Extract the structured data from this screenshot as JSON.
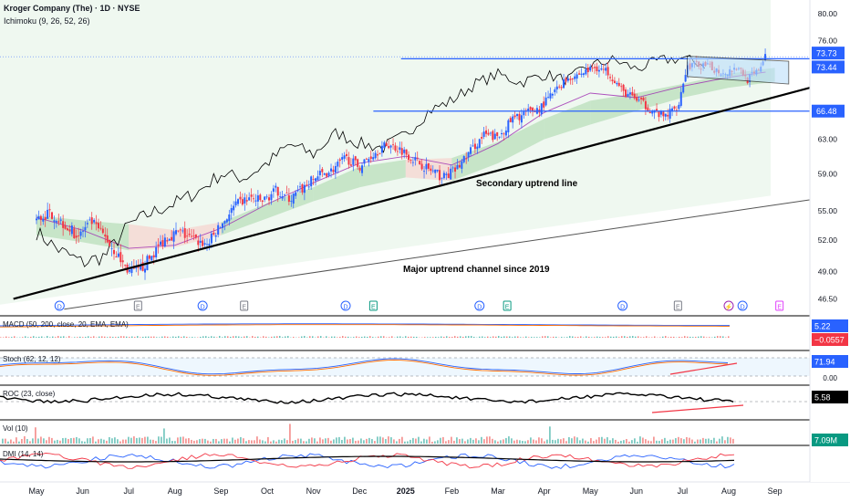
{
  "header": {
    "title": "Kroger Company (The) · 1D · NYSE",
    "indicator": "Ichimoku (9, 26, 52, 26)"
  },
  "price_axis": {
    "ticks": [
      "80.00",
      "76.00",
      "73.44",
      "66.48",
      "63.00",
      "59.00",
      "55.00",
      "52.00",
      "49.00",
      "46.50"
    ],
    "badges": [
      {
        "label": "73.73",
        "value": 73.73,
        "color": "#2962ff"
      },
      {
        "label": "73.44",
        "value": 73.44,
        "color": "#2962ff"
      },
      {
        "label": "66.48",
        "value": 66.48,
        "color": "#2962ff"
      }
    ]
  },
  "annotations": {
    "secondary_trend_label": "Secondary uptrend line",
    "major_channel_label": "Major uptrend channel since 2019"
  },
  "events": [
    {
      "label": "D",
      "x_month": 0.5,
      "color": "#2962ff"
    },
    {
      "label": "E",
      "x_month": 2.2,
      "color": "#787b86"
    },
    {
      "label": "D",
      "x_month": 3.6,
      "color": "#2962ff"
    },
    {
      "label": "E",
      "x_month": 4.5,
      "color": "#787b86"
    },
    {
      "label": "D",
      "x_month": 6.7,
      "color": "#2962ff"
    },
    {
      "label": "E",
      "x_month": 7.3,
      "color": "#089981"
    },
    {
      "label": "D",
      "x_month": 9.6,
      "color": "#2962ff"
    },
    {
      "label": "E",
      "x_month": 10.2,
      "color": "#089981"
    },
    {
      "label": "D",
      "x_month": 12.7,
      "color": "#2962ff"
    },
    {
      "label": "E",
      "x_month": 13.9,
      "color": "#787b86"
    },
    {
      "label": "⚡",
      "x_month": 15.0,
      "color": "#9c27b0"
    },
    {
      "label": "D",
      "x_month": 15.3,
      "color": "#2962ff"
    },
    {
      "label": "E",
      "x_month": 16.1,
      "color": "#e040fb"
    }
  ],
  "panes": {
    "macd": {
      "label": "MACD (50, 200, close, 20, EMA, EMA)",
      "badges": [
        {
          "label": "5.22",
          "color": "#2962ff"
        },
        {
          "label": "−0.0557",
          "color": "#f23645"
        }
      ]
    },
    "stoch": {
      "label": "Stoch (62, 12, 12)",
      "badges": [
        {
          "label": "71.94",
          "color": "#2962ff"
        }
      ],
      "axis": [
        "0.00"
      ]
    },
    "roc": {
      "label": "ROC (23, close)",
      "badges": [
        {
          "label": "5.58",
          "color": "#000000"
        }
      ]
    },
    "vol": {
      "label": "Vol (10)",
      "badges": [
        {
          "label": "7.09M",
          "color": "#089981"
        }
      ]
    },
    "dmi": {
      "label": "DMI (14, 14)"
    }
  },
  "time_axis": {
    "labels": [
      {
        "text": "May",
        "m": 0
      },
      {
        "text": "Jun",
        "m": 1
      },
      {
        "text": "Jul",
        "m": 2
      },
      {
        "text": "Aug",
        "m": 3
      },
      {
        "text": "Sep",
        "m": 4
      },
      {
        "text": "Oct",
        "m": 5
      },
      {
        "text": "Nov",
        "m": 6
      },
      {
        "text": "Dec",
        "m": 7
      },
      {
        "text": "2025",
        "m": 8
      },
      {
        "text": "Feb",
        "m": 9
      },
      {
        "text": "Mar",
        "m": 10
      },
      {
        "text": "Apr",
        "m": 11
      },
      {
        "text": "May",
        "m": 12
      },
      {
        "text": "Jun",
        "m": 13
      },
      {
        "text": "Jul",
        "m": 14
      },
      {
        "text": "Aug",
        "m": 15
      },
      {
        "text": "Sep",
        "m": 16
      }
    ]
  },
  "chart_data": {
    "type": "line",
    "title": "Kroger Company (The) · 1D · NYSE",
    "x_unit": "months from May 2024",
    "ylim": [
      45.5,
      81
    ],
    "price": [
      [
        0,
        54.0
      ],
      [
        0.3,
        54.8
      ],
      [
        0.6,
        53.6
      ],
      [
        0.9,
        52.4
      ],
      [
        1.2,
        53.8
      ],
      [
        1.5,
        52.2
      ],
      [
        1.8,
        50.2
      ],
      [
        2.0,
        49.0
      ],
      [
        2.2,
        48.9
      ],
      [
        2.5,
        50.5
      ],
      [
        2.8,
        52.3
      ],
      [
        3.1,
        52.8
      ],
      [
        3.4,
        52.0
      ],
      [
        3.7,
        51.6
      ],
      [
        4.0,
        53.5
      ],
      [
        4.3,
        55.5
      ],
      [
        4.6,
        56.3
      ],
      [
        4.9,
        56.0
      ],
      [
        5.2,
        57.2
      ],
      [
        5.5,
        56.2
      ],
      [
        5.8,
        57.5
      ],
      [
        6.1,
        58.8
      ],
      [
        6.4,
        59.4
      ],
      [
        6.7,
        60.8
      ],
      [
        7.0,
        59.8
      ],
      [
        7.3,
        61.3
      ],
      [
        7.6,
        62.4
      ],
      [
        7.9,
        61.8
      ],
      [
        8.2,
        60.6
      ],
      [
        8.5,
        59.5
      ],
      [
        8.8,
        58.6
      ],
      [
        9.1,
        59.5
      ],
      [
        9.4,
        61.6
      ],
      [
        9.7,
        63.5
      ],
      [
        10.0,
        63.2
      ],
      [
        10.3,
        65.4
      ],
      [
        10.6,
        66.2
      ],
      [
        10.9,
        66.8
      ],
      [
        11.2,
        68.8
      ],
      [
        11.5,
        70.8
      ],
      [
        11.8,
        71.4
      ],
      [
        12.1,
        72.3
      ],
      [
        12.4,
        71.6
      ],
      [
        12.7,
        69.0
      ],
      [
        13.0,
        68.0
      ],
      [
        13.3,
        66.7
      ],
      [
        13.6,
        65.7
      ],
      [
        13.9,
        67.2
      ],
      [
        14.1,
        72.4
      ],
      [
        14.3,
        72.6
      ],
      [
        14.6,
        72.2
      ],
      [
        14.9,
        71.5
      ],
      [
        15.2,
        72.4
      ],
      [
        15.4,
        70.6
      ],
      [
        15.6,
        71.5
      ],
      [
        15.8,
        73.7
      ]
    ],
    "lagging_span": [
      [
        0,
        52.8
      ],
      [
        0.5,
        51.0
      ],
      [
        1.0,
        49.8
      ],
      [
        1.5,
        50.5
      ],
      [
        2.0,
        53.5
      ],
      [
        2.5,
        54.8
      ],
      [
        3.0,
        55.8
      ],
      [
        3.5,
        57.0
      ],
      [
        4.0,
        59.0
      ],
      [
        4.5,
        58.5
      ],
      [
        5.0,
        60.2
      ],
      [
        5.5,
        62.4
      ],
      [
        6.0,
        61.2
      ],
      [
        6.5,
        63.8
      ],
      [
        7.0,
        62.5
      ],
      [
        7.5,
        62.0
      ],
      [
        8.0,
        63.5
      ],
      [
        8.5,
        66.5
      ],
      [
        9.0,
        67.8
      ],
      [
        9.5,
        70.0
      ],
      [
        10.0,
        71.3
      ],
      [
        10.5,
        70.2
      ],
      [
        11.0,
        71.3
      ],
      [
        11.5,
        70.5
      ],
      [
        12.0,
        72.5
      ],
      [
        12.5,
        73.3
      ],
      [
        13.0,
        72.0
      ],
      [
        13.5,
        73.2
      ],
      [
        14.0,
        73.5
      ],
      [
        14.5,
        72.6
      ]
    ],
    "kijun": [
      [
        0,
        54.3
      ],
      [
        1,
        53.0
      ],
      [
        2,
        51.2
      ],
      [
        3,
        51.5
      ],
      [
        4,
        53.2
      ],
      [
        5,
        55.7
      ],
      [
        6,
        58.0
      ],
      [
        7,
        60.2
      ],
      [
        8,
        61.0
      ],
      [
        9,
        60.0
      ],
      [
        10,
        62.5
      ],
      [
        11,
        66.3
      ],
      [
        12,
        68.8
      ],
      [
        13,
        68.2
      ],
      [
        14,
        69.7
      ],
      [
        15,
        70.9
      ],
      [
        15.8,
        71.6
      ]
    ],
    "cloud": [
      [
        0,
        52.5,
        54.5
      ],
      [
        1,
        51.8,
        54.0
      ],
      [
        2,
        51.0,
        53.6
      ],
      [
        3,
        51.3,
        53.0
      ],
      [
        4,
        52.5,
        53.8
      ],
      [
        5,
        54.2,
        55.8
      ],
      [
        6,
        56.0,
        57.5
      ],
      [
        7,
        57.5,
        59.8
      ],
      [
        8,
        58.6,
        60.6
      ],
      [
        9,
        58.2,
        60.8
      ],
      [
        10,
        60.2,
        62.7
      ],
      [
        11,
        63.0,
        65.5
      ],
      [
        12,
        64.8,
        67.8
      ],
      [
        13,
        66.5,
        68.8
      ],
      [
        14,
        68.2,
        70.0
      ],
      [
        15,
        69.5,
        71.4
      ],
      [
        16,
        70.3,
        72.2
      ],
      [
        17,
        71.5,
        72.6
      ]
    ],
    "levels": [
      {
        "value": 73.44,
        "from_month": 7.9
      },
      {
        "value": 66.48,
        "from_month": 7.3
      }
    ],
    "secondary_trend_line": [
      [
        -0.5,
        46.5
      ],
      [
        18,
        71.3
      ]
    ],
    "major_channel_line": [
      [
        0.6,
        45.6
      ],
      [
        17.5,
        56.6
      ]
    ],
    "flag": [
      [
        14.1,
        73.8
      ],
      [
        16.3,
        73.1
      ],
      [
        16.3,
        70.0
      ],
      [
        14.1,
        71.0
      ]
    ],
    "series_names": [],
    "grid": false
  }
}
